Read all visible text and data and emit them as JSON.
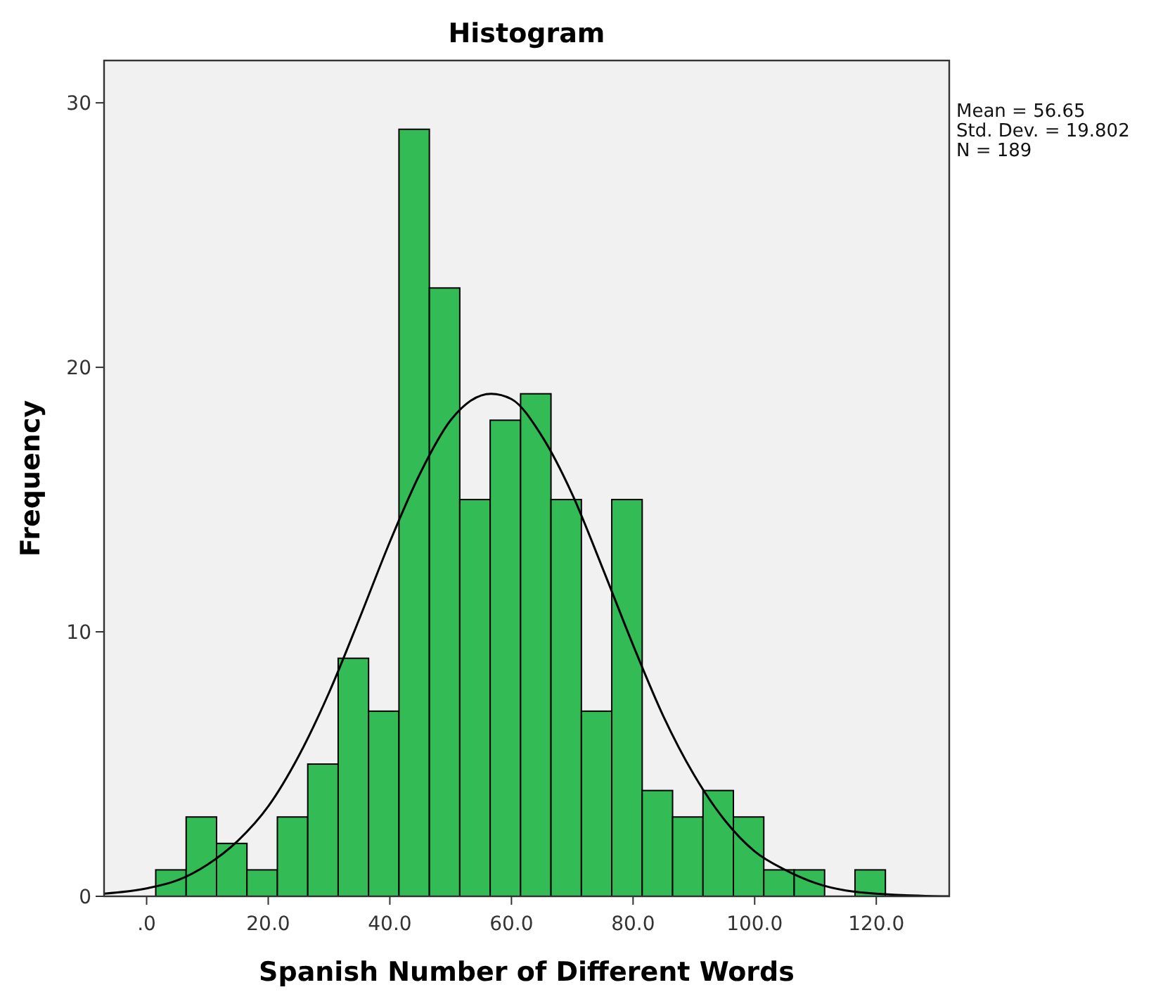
{
  "chart_data": {
    "type": "histogram",
    "title": "Histogram",
    "xlabel": "Spanish Number of Different Words",
    "ylabel": "Frequency",
    "bins": [
      1.5,
      6.5,
      11.5,
      16.5,
      21.5,
      26.5,
      31.5,
      36.5,
      41.5,
      46.5,
      51.5,
      56.5,
      61.5,
      66.5,
      71.5,
      76.5,
      81.5,
      86.5,
      91.5,
      96.5,
      101.5,
      106.5,
      111.5,
      116.5,
      121.5
    ],
    "series": [
      {
        "color": "#33bb55",
        "values": [
          1,
          3,
          2,
          1,
          3,
          5,
          9,
          7,
          29,
          23,
          15,
          18,
          19,
          15,
          7,
          15,
          4,
          3,
          4,
          3,
          1,
          1,
          0,
          1
        ]
      },
      {
        "type": "line",
        "color": "#000000",
        "x": [
          -7,
          0,
          5,
          10,
          15,
          20,
          25,
          30,
          35,
          40,
          45,
          50,
          56.65,
          60,
          65,
          70,
          75,
          80,
          85,
          90,
          95,
          100,
          105,
          110,
          120,
          132
        ],
        "values": [
          0.1,
          0.3,
          0.6,
          1.2,
          2.1,
          3.4,
          5.3,
          7.7,
          10.5,
          13.4,
          16.0,
          18.0,
          19.0,
          18.8,
          17.4,
          15.2,
          12.4,
          9.5,
          6.8,
          4.6,
          2.9,
          1.7,
          1.0,
          0.5,
          0.1,
          0.0
        ]
      }
    ],
    "xlim": [
      -7,
      132
    ],
    "ylim": [
      0,
      31.6
    ],
    "xticks": [
      {
        "value": 0,
        "label": ".0"
      },
      {
        "value": 20,
        "label": "20.0"
      },
      {
        "value": 40,
        "label": "40.0"
      },
      {
        "value": 60,
        "label": "60.0"
      },
      {
        "value": 80,
        "label": "80.0"
      },
      {
        "value": 100,
        "label": "100.0"
      },
      {
        "value": 120,
        "label": "120.0"
      }
    ],
    "yticks": [
      0,
      10,
      20,
      30
    ],
    "marker": "none",
    "grid": false,
    "annotations": [
      "Mean = 56.65",
      "Std. Dev. = 19.802",
      "N = 189"
    ]
  }
}
